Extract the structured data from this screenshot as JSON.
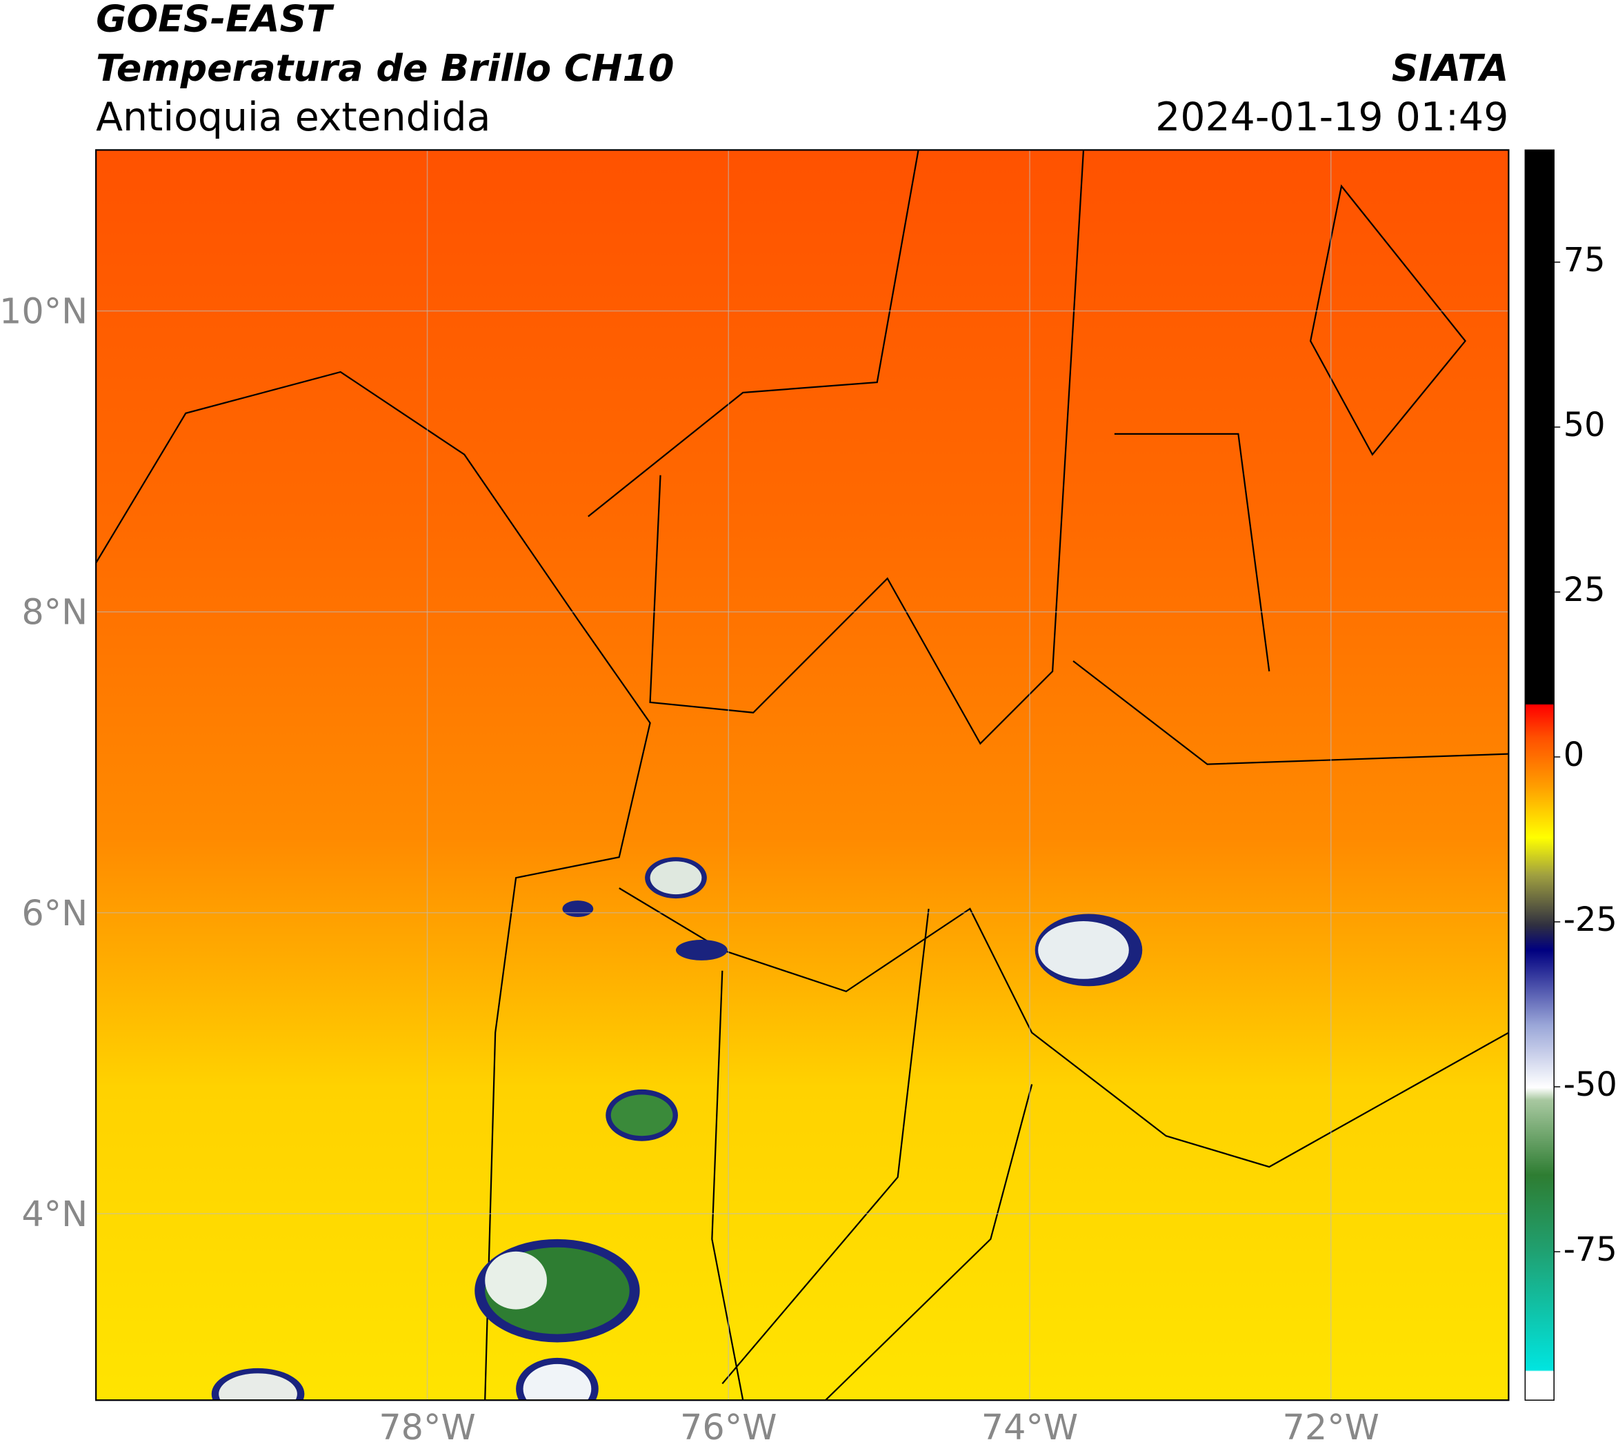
{
  "header": {
    "title": "GOES-EAST",
    "subtitle": "Temperatura de Brillo CH10",
    "region": "Antioquia extendida",
    "source": "SIATA",
    "datetime": "2024-01-19 01:49"
  },
  "map": {
    "xlim": [
      -80.2,
      -70.82
    ],
    "ylim": [
      2.76,
      11.07
    ],
    "grid": true,
    "xticks": [
      {
        "value": -78,
        "label": "78°W"
      },
      {
        "value": -76,
        "label": "76°W"
      },
      {
        "value": -74,
        "label": "74°W"
      },
      {
        "value": -72,
        "label": "72°W"
      }
    ],
    "yticks": [
      {
        "value": 4,
        "label": "4°N"
      },
      {
        "value": 6,
        "label": "6°N"
      },
      {
        "value": 8,
        "label": "8°N"
      },
      {
        "value": 10,
        "label": "10°N"
      }
    ]
  },
  "colorbar": {
    "lim": [
      -97.5,
      92
    ],
    "ticks": [
      -75,
      -50,
      -25,
      0,
      25,
      50,
      75
    ]
  }
}
